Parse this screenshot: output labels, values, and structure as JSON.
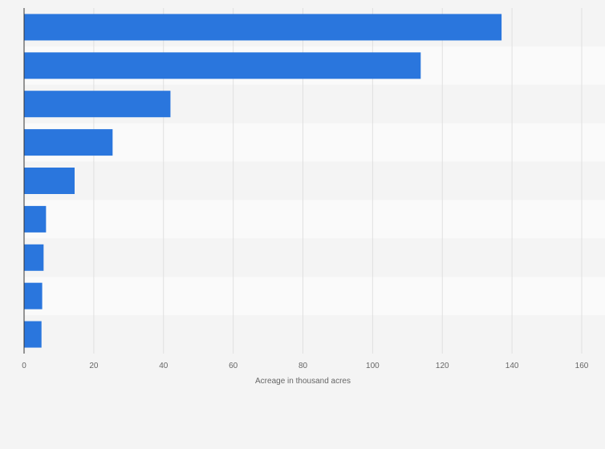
{
  "chart_data": {
    "type": "bar",
    "orientation": "horizontal",
    "categories": [
      "",
      "",
      "",
      "",
      "",
      "",
      "",
      "",
      ""
    ],
    "values": [
      137,
      113.8,
      42,
      25.4,
      14.5,
      6.3,
      5.6,
      5.2,
      5.0
    ],
    "xlabel": "Acreage in thousand acres",
    "ylabel": "",
    "xlim": [
      0,
      160
    ],
    "xticks": [
      0,
      20,
      40,
      60,
      80,
      100,
      120,
      140,
      160
    ],
    "grid": true,
    "legend": "none",
    "colors": {
      "bar": "#2a76dd",
      "row_even": "#f4f4f4",
      "row_odd": "#fafafa",
      "grid": "#e0e0e0",
      "axis": "#333333",
      "background": "#f4f4f4"
    }
  }
}
